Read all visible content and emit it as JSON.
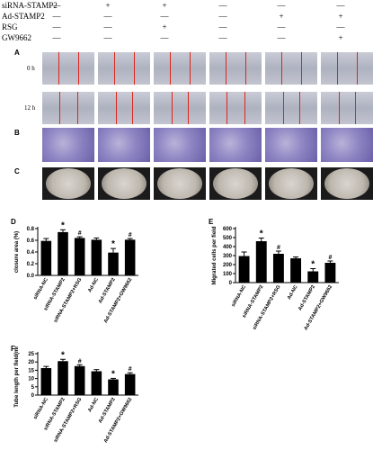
{
  "treatments": {
    "rows": [
      {
        "label": "siRNA-STAMP2",
        "marks": [
          "—",
          "+",
          "+",
          "—",
          "—",
          "—"
        ]
      },
      {
        "label": "Ad-STAMP2",
        "marks": [
          "—",
          "—",
          "—",
          "—",
          "+",
          "+"
        ]
      },
      {
        "label": "RSG",
        "marks": [
          "—",
          "—",
          "+",
          "—",
          "—",
          "—"
        ]
      },
      {
        "label": "GW9662",
        "marks": [
          "—",
          "—",
          "—",
          "—",
          "—",
          "+"
        ]
      }
    ]
  },
  "panels": {
    "A": "A",
    "B": "B",
    "C": "C",
    "D": "D",
    "E": "E",
    "F": "F"
  },
  "scratch_times": {
    "t0": "0 h",
    "t12": "12 h"
  },
  "bar_color": "#000000",
  "chart_data": [
    {
      "type": "bar",
      "panel": "D",
      "ylabel": "closure area (%)",
      "categories": [
        "siRNA-NC",
        "siRNA-STAMP2",
        "siRNA-STAMP2+RSG",
        "Ad-NC",
        "Ad-STAMP2",
        "Ad-STAMP2+GW9662"
      ],
      "values": [
        0.59,
        0.74,
        0.64,
        0.61,
        0.39,
        0.61
      ],
      "errors": [
        0.04,
        0.04,
        0.02,
        0.03,
        0.07,
        0.02
      ],
      "annotations": [
        "",
        "*",
        "#",
        "",
        "*",
        "#"
      ],
      "ylim": [
        0.0,
        0.8
      ],
      "yticks": [
        "0.0",
        "0.2",
        "0.4",
        "0.6",
        "0.8"
      ]
    },
    {
      "type": "bar",
      "panel": "E",
      "ylabel": "Migrated cells per field",
      "categories": [
        "siRNA-NC",
        "siRNA-STAMP2",
        "siRNA-STAMP2+RSG",
        "Ad-NC",
        "Ad-STAMP2",
        "Ad-STAMP2+GW9662"
      ],
      "values": [
        295,
        460,
        320,
        270,
        125,
        220
      ],
      "errors": [
        45,
        35,
        30,
        15,
        30,
        20
      ],
      "annotations": [
        "",
        "*",
        "#",
        "",
        "*",
        "#"
      ],
      "ylim": [
        0,
        600
      ],
      "yticks": [
        "0",
        "100",
        "200",
        "300",
        "400",
        "500",
        "600"
      ]
    },
    {
      "type": "bar",
      "panel": "F",
      "ylabel": "Tube length per field(mm)",
      "categories": [
        "siRNA-NC",
        "siRNA-STAMP2",
        "siRNA-STAMP2+RSG",
        "Ad-NC",
        "Ad-STAMP2",
        "Ad-STAMP2+GW9662"
      ],
      "values": [
        16.3,
        20.5,
        17.5,
        14.4,
        9.5,
        12.7
      ],
      "errors": [
        1.0,
        1.1,
        0.8,
        1.0,
        0.6,
        0.8
      ],
      "annotations": [
        "",
        "*",
        "#",
        "",
        "*",
        "#"
      ],
      "ylim": [
        0,
        25
      ],
      "yticks": [
        "0",
        "5",
        "10",
        "15",
        "20",
        "25"
      ]
    }
  ]
}
